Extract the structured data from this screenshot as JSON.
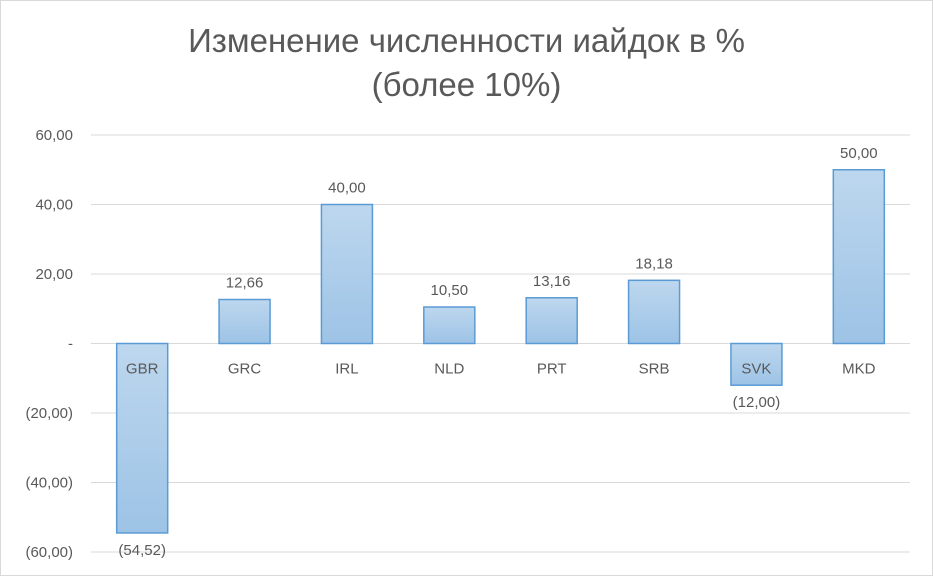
{
  "chart_data": {
    "type": "bar",
    "title": [
      "Изменение численности иайдок в %",
      "(более 10%)"
    ],
    "categories": [
      "GBR",
      "GRC",
      "IRL",
      "NLD",
      "PRT",
      "SRB",
      "SVK",
      "MKD"
    ],
    "values": [
      -54.52,
      12.66,
      40.0,
      10.5,
      13.16,
      18.18,
      -12.0,
      50.0
    ],
    "data_labels": [
      "(54,52)",
      "12,66",
      "40,00",
      "10,50",
      "13,16",
      "18,18",
      "(12,00)",
      "50,00"
    ],
    "y_ticks": [
      60,
      40,
      20,
      0,
      -20,
      -40,
      -60
    ],
    "y_tick_labels": [
      "60,00",
      "40,00",
      "20,00",
      "-",
      "(20,00)",
      "(40,00)",
      "(60,00)"
    ],
    "ylim": [
      -60,
      60
    ],
    "grid": true,
    "legend": "none",
    "xlabel": "",
    "ylabel": ""
  },
  "colors": {
    "bar_fill_top": "#bdd7ee",
    "bar_fill_bottom": "#9dc3e6",
    "bar_stroke": "#5b9bd5",
    "grid": "#d9d9d9",
    "text": "#595959"
  }
}
